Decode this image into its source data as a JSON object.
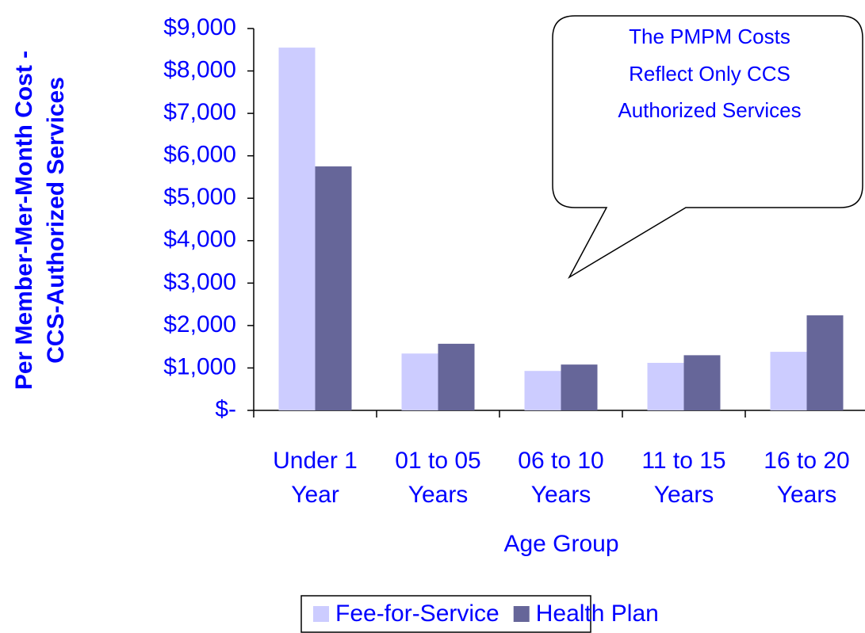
{
  "chart_data": {
    "type": "bar",
    "ylabel": [
      "Per Member-Mer-Month Cost -",
      "CCS-Authorized Services"
    ],
    "xlabel": "Age Group",
    "categories": [
      "Under 1 Year",
      "01 to 05 Years",
      "06 to 10 Years",
      "11 to 15 Years",
      "16 to 20 Years"
    ],
    "series": [
      {
        "name": "Fee-for-Service",
        "color": "#ccccff",
        "values": [
          8550,
          1340,
          930,
          1120,
          1380
        ]
      },
      {
        "name": "Health Plan",
        "color": "#666699",
        "values": [
          5750,
          1570,
          1080,
          1300,
          2240
        ]
      }
    ],
    "ylim": [
      0,
      9000
    ],
    "yticks": [
      {
        "value": 0,
        "label": "$-"
      },
      {
        "value": 1000,
        "label": "$1,000"
      },
      {
        "value": 2000,
        "label": "$2,000"
      },
      {
        "value": 3000,
        "label": "$3,000"
      },
      {
        "value": 4000,
        "label": "$4,000"
      },
      {
        "value": 5000,
        "label": "$5,000"
      },
      {
        "value": 6000,
        "label": "$6,000"
      },
      {
        "value": 7000,
        "label": "$7,000"
      },
      {
        "value": 8000,
        "label": "$8,000"
      },
      {
        "value": 9000,
        "label": "$9,000"
      }
    ],
    "annotation": [
      "The PMPM Costs",
      "Reflect Only CCS",
      "Authorized Services"
    ],
    "legend": "bottom"
  }
}
